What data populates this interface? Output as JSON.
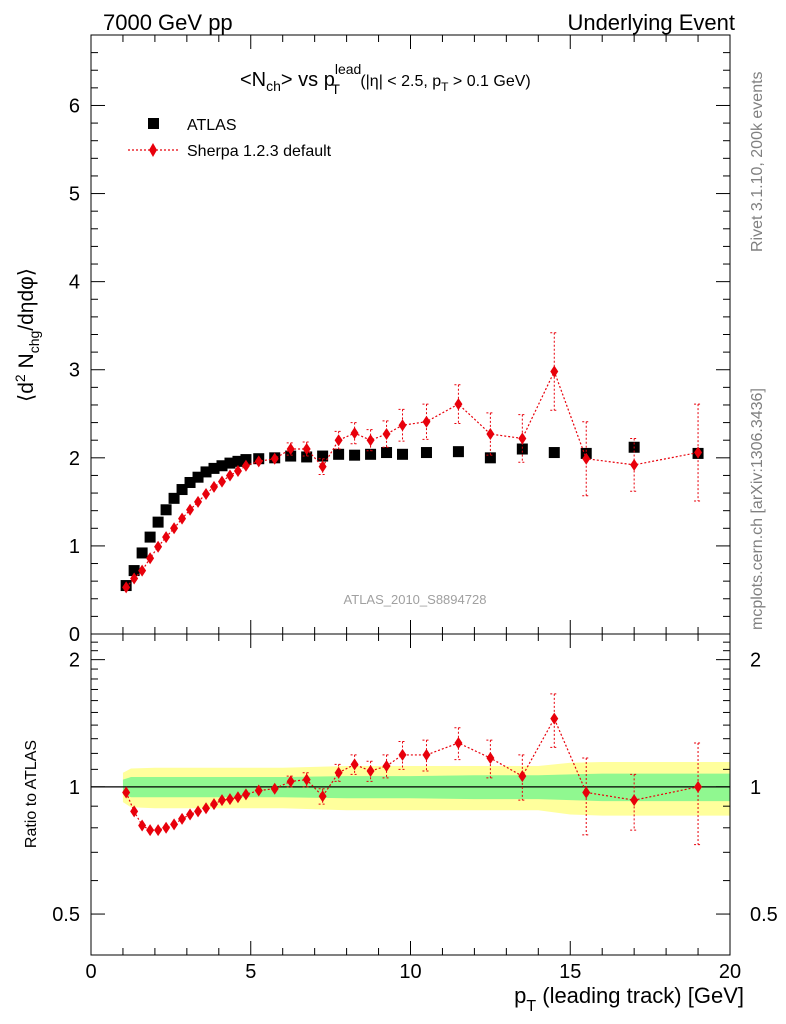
{
  "header": {
    "left": "7000 GeV pp",
    "right": "Underlying Event"
  },
  "side_labels": {
    "rivet": "Rivet 3.1.10,  200k events",
    "mcplots": "mcplots.cern.ch [arXiv:1306.3436]"
  },
  "analysis_id": "ATLAS_2010_S8894728",
  "colors": {
    "data": "#000000",
    "mc": "#e8000b",
    "band_inner": "#90f890",
    "band_outer": "#ffff9c"
  },
  "chart_data": [
    {
      "type": "scatter",
      "panel": "main",
      "title": {
        "base": "<N",
        "sub1": "ch",
        "mid": "> vs p",
        "sup": "lead",
        "sub2": "T",
        "tail1": " (|η| < 2.5, p",
        "sub3": "T",
        "tail2": " > 0.1 GeV)"
      },
      "ylabel": {
        "p1": "⟨d",
        "sup": "2",
        "p2": " N",
        "sub": "chg",
        "p3": "/dηdφ⟩"
      },
      "xlim": [
        0,
        20
      ],
      "ylim": [
        0,
        6.8
      ],
      "yticks": [
        "0",
        "1",
        "2",
        "3",
        "4",
        "5",
        "6"
      ],
      "legend": {
        "position": "top-left",
        "entries": [
          "ATLAS",
          "Sherpa 1.2.3 default"
        ]
      },
      "series": [
        {
          "name": "ATLAS",
          "marker": "square",
          "x": [
            1.1,
            1.35,
            1.6,
            1.85,
            2.1,
            2.35,
            2.6,
            2.85,
            3.1,
            3.35,
            3.6,
            3.85,
            4.1,
            4.35,
            4.6,
            4.85,
            5.25,
            5.75,
            6.25,
            6.75,
            7.25,
            7.75,
            8.25,
            8.75,
            9.25,
            9.75,
            10.5,
            11.5,
            12.5,
            13.5,
            14.5,
            15.5,
            17.0,
            19.0
          ],
          "y": [
            0.55,
            0.72,
            0.92,
            1.1,
            1.27,
            1.41,
            1.54,
            1.64,
            1.72,
            1.78,
            1.84,
            1.88,
            1.91,
            1.94,
            1.96,
            1.98,
            1.99,
            2.0,
            2.02,
            2.01,
            2.02,
            2.04,
            2.03,
            2.04,
            2.06,
            2.04,
            2.06,
            2.07,
            2.0,
            2.1,
            2.06,
            2.05,
            2.12,
            2.05
          ]
        },
        {
          "name": "Sherpa 1.2.3 default",
          "marker": "diamond",
          "x": [
            1.1,
            1.35,
            1.6,
            1.85,
            2.1,
            2.35,
            2.6,
            2.85,
            3.1,
            3.35,
            3.6,
            3.85,
            4.1,
            4.35,
            4.6,
            4.85,
            5.25,
            5.75,
            6.25,
            6.75,
            7.25,
            7.75,
            8.25,
            8.75,
            9.25,
            9.75,
            10.5,
            11.5,
            12.5,
            13.5,
            14.5,
            15.5,
            17.0,
            19.0
          ],
          "y": [
            0.53,
            0.63,
            0.72,
            0.86,
            0.99,
            1.1,
            1.2,
            1.31,
            1.41,
            1.5,
            1.59,
            1.67,
            1.73,
            1.8,
            1.85,
            1.91,
            1.96,
            1.99,
            2.1,
            2.1,
            1.9,
            2.2,
            2.28,
            2.2,
            2.27,
            2.37,
            2.41,
            2.61,
            2.27,
            2.22,
            2.98,
            1.99,
            1.92,
            2.06
          ],
          "yerr": [
            0.03,
            0.03,
            0.03,
            0.03,
            0.03,
            0.03,
            0.03,
            0.03,
            0.03,
            0.03,
            0.03,
            0.03,
            0.03,
            0.03,
            0.03,
            0.03,
            0.04,
            0.05,
            0.07,
            0.08,
            0.09,
            0.1,
            0.12,
            0.12,
            0.15,
            0.18,
            0.2,
            0.22,
            0.24,
            0.27,
            0.44,
            0.42,
            0.3,
            0.55
          ]
        }
      ]
    },
    {
      "type": "scatter",
      "panel": "ratio",
      "ylabel": "Ratio to ATLAS",
      "xlabel": {
        "p1": "p",
        "sub": "T",
        "p2": " (leading track) [GeV]"
      },
      "xlim": [
        0,
        20
      ],
      "ylim": [
        0.4,
        2.3
      ],
      "xticks": [
        "0",
        "5",
        "10",
        "15",
        "20"
      ],
      "yticks": [
        {
          "value": 0.5,
          "label": "0.5"
        },
        {
          "value": 1.0,
          "label": "1"
        },
        {
          "value": 2.0,
          "label": "2"
        }
      ],
      "reference_line": 1.0,
      "band_x": [
        1.0,
        1.25,
        2.0,
        4.0,
        5.0,
        6.0,
        8.0,
        10.0,
        12.0,
        14.0,
        15.0,
        16.0,
        18.0,
        20.0
      ],
      "band_inner": [
        0.04,
        0.055,
        0.055,
        0.055,
        0.055,
        0.055,
        0.06,
        0.06,
        0.065,
        0.065,
        0.07,
        0.075,
        0.075,
        0.075
      ],
      "band_outer": [
        0.08,
        0.105,
        0.11,
        0.11,
        0.11,
        0.11,
        0.12,
        0.12,
        0.12,
        0.12,
        0.14,
        0.145,
        0.145,
        0.145
      ],
      "series": [
        {
          "name": "Sherpa 1.2.3 default",
          "marker": "diamond",
          "x": [
            1.1,
            1.35,
            1.6,
            1.85,
            2.1,
            2.35,
            2.6,
            2.85,
            3.1,
            3.35,
            3.6,
            3.85,
            4.1,
            4.35,
            4.6,
            4.85,
            5.25,
            5.75,
            6.25,
            6.75,
            7.25,
            7.75,
            8.25,
            8.75,
            9.25,
            9.75,
            10.5,
            11.5,
            12.5,
            13.5,
            14.5,
            15.5,
            17.0,
            19.0
          ],
          "y": [
            0.97,
            0.875,
            0.81,
            0.79,
            0.79,
            0.8,
            0.815,
            0.84,
            0.86,
            0.875,
            0.89,
            0.91,
            0.93,
            0.935,
            0.945,
            0.96,
            0.98,
            0.99,
            1.03,
            1.04,
            0.95,
            1.08,
            1.13,
            1.09,
            1.12,
            1.19,
            1.19,
            1.27,
            1.17,
            1.06,
            1.45,
            0.97,
            0.93,
            1.0
          ],
          "yerr": [
            0.02,
            0.02,
            0.02,
            0.02,
            0.02,
            0.02,
            0.02,
            0.02,
            0.02,
            0.02,
            0.02,
            0.02,
            0.02,
            0.02,
            0.02,
            0.02,
            0.02,
            0.02,
            0.03,
            0.04,
            0.04,
            0.05,
            0.06,
            0.06,
            0.07,
            0.09,
            0.1,
            0.11,
            0.12,
            0.13,
            0.21,
            0.2,
            0.14,
            0.27
          ]
        }
      ]
    }
  ]
}
